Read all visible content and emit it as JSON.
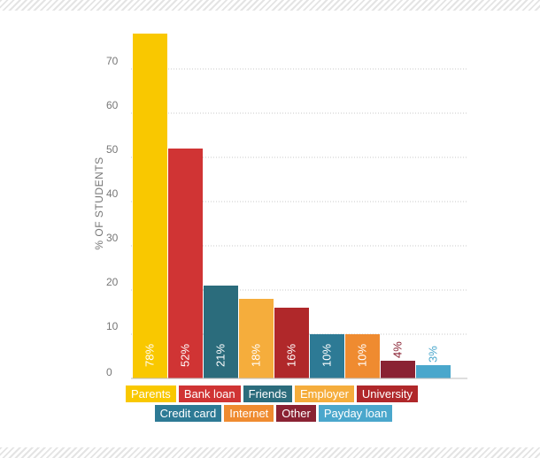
{
  "chart_data": {
    "type": "bar",
    "ylabel": "% OF STUDENTS",
    "ylim": [
      0,
      80
    ],
    "yticks": [
      0,
      10,
      20,
      30,
      40,
      50,
      60,
      70
    ],
    "grid": true,
    "legend_placement": "bottom",
    "categories": [
      "Parents",
      "Bank loan",
      "Friends",
      "Employer",
      "University",
      "Credit card",
      "Internet",
      "Other",
      "Payday loan"
    ],
    "values": [
      78,
      52,
      21,
      18,
      16,
      10,
      10,
      4,
      3
    ],
    "data_labels": [
      "78%",
      "52%",
      "21%",
      "18%",
      "16%",
      "10%",
      "10%",
      "4%",
      "3%"
    ],
    "colors": [
      "#f9c800",
      "#d03434",
      "#2b6c7c",
      "#f5ad3c",
      "#b0282a",
      "#2d7a95",
      "#ef8b30",
      "#8a2233",
      "#4aa7cc"
    ],
    "label_inside": [
      true,
      true,
      true,
      true,
      true,
      true,
      true,
      false,
      false
    ]
  }
}
